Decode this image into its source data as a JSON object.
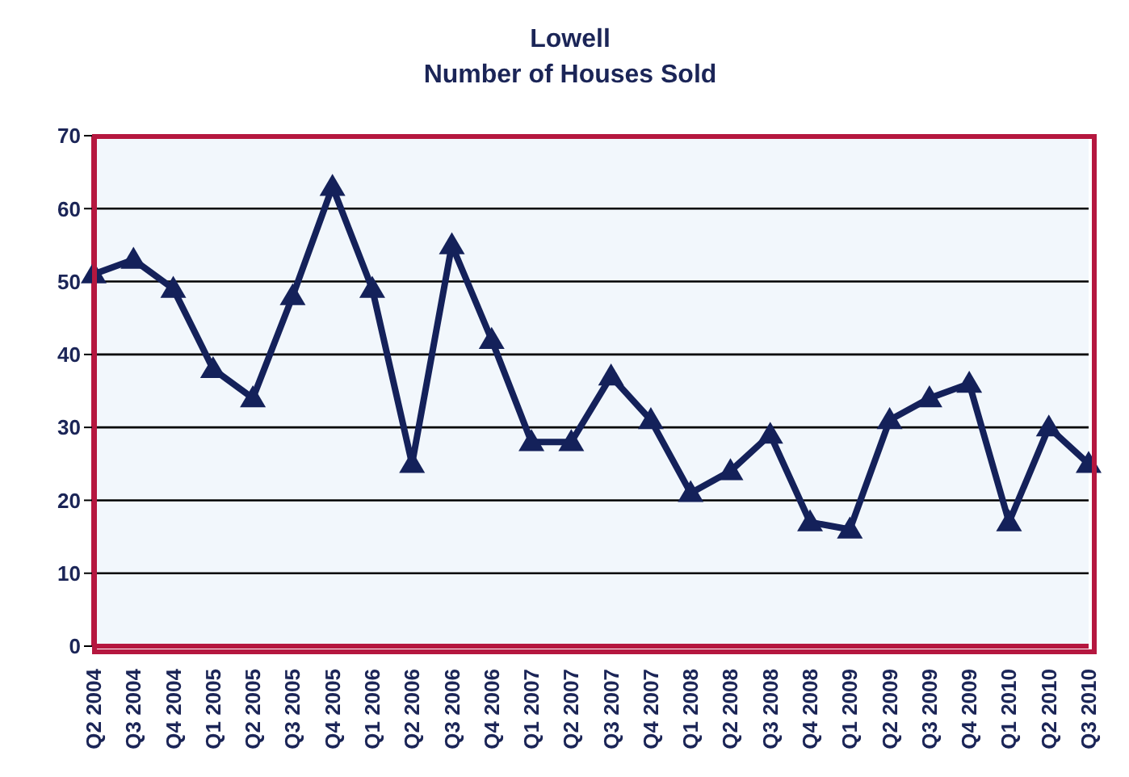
{
  "chart_data": {
    "type": "line",
    "title": "Lowell",
    "subtitle": "Number of Houses Sold",
    "categories": [
      "Q2 2004",
      "Q3 2004",
      "Q4 2004",
      "Q1 2005",
      "Q2 2005",
      "Q3 2005",
      "Q4 2005",
      "Q1 2006",
      "Q2 2006",
      "Q3 2006",
      "Q4 2006",
      "Q1 2007",
      "Q2 2007",
      "Q3 2007",
      "Q4 2007",
      "Q1 2008",
      "Q2 2008",
      "Q3 2008",
      "Q4 2008",
      "Q1 2009",
      "Q2 2009",
      "Q3 2009",
      "Q4 2009",
      "Q1 2010",
      "Q2 2010",
      "Q3 2010"
    ],
    "series": [
      {
        "color": "#14215a",
        "values": [
          51,
          53,
          49,
          38,
          34,
          48,
          63,
          49,
          25,
          55,
          42,
          28,
          28,
          37,
          31,
          21,
          24,
          29,
          17,
          16,
          31,
          34,
          36,
          17,
          30,
          25
        ]
      }
    ],
    "ylim": [
      0,
      70
    ],
    "yticks": [
      0,
      10,
      20,
      30,
      40,
      50,
      60,
      70
    ],
    "grid": "y",
    "legend": false,
    "marker": "triangle",
    "line_style": "solid"
  }
}
